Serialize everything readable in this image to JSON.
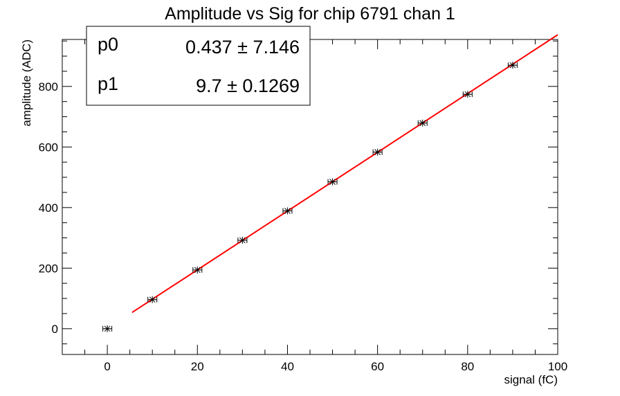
{
  "chart_data": {
    "type": "scatter",
    "title": "Amplitude vs Sig for chip 6791 chan 1",
    "xlabel": "signal (fC)",
    "ylabel": "amplitude (ADC)",
    "xlim": [
      -10,
      100
    ],
    "ylim": [
      -85,
      955
    ],
    "x_ticks": [
      0,
      20,
      40,
      60,
      80,
      100
    ],
    "y_ticks": [
      0,
      200,
      400,
      600,
      800
    ],
    "series": [
      {
        "marker": "star",
        "color": "#000000",
        "x": [
          0,
          10,
          20,
          30,
          40,
          50,
          60,
          70,
          80,
          90
        ],
        "y": [
          0,
          96,
          194,
          292,
          389,
          485,
          583,
          679,
          774,
          870
        ],
        "x_err": [
          1,
          1,
          1,
          1,
          1,
          1,
          1,
          1,
          1,
          1
        ]
      }
    ],
    "fit": {
      "color": "#ff0000",
      "x_range": [
        5.5,
        100
      ],
      "p0": 0.437,
      "p1": 9.7
    },
    "stats_box": {
      "rows": [
        {
          "label": "p0",
          "value": "0.437 ± 7.146"
        },
        {
          "label": "p1",
          "value": "9.7 ± 0.1269"
        }
      ]
    },
    "grid": false
  }
}
